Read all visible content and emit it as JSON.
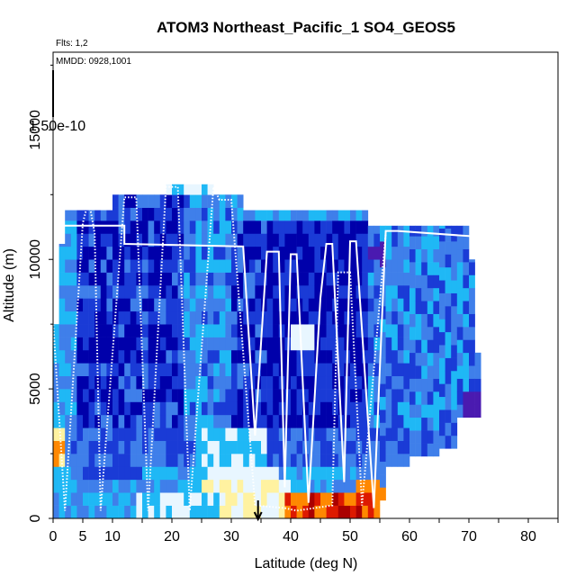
{
  "chart_data": {
    "type": "heatmap",
    "title": "ATOM3 Northeast_Pacific_1 SO4_GEOS5",
    "annotations": {
      "flights": "Flts: 1,2",
      "dates": "MMDD: 0928,1001",
      "colorbar_value": "1.50e-10"
    },
    "xlabel": "Latitude (deg N)",
    "ylabel": "Altitude (m)",
    "xlim": [
      0,
      85
    ],
    "ylim": [
      0,
      18000
    ],
    "x_ticks": [
      0,
      5,
      10,
      20,
      30,
      40,
      50,
      60,
      70,
      80
    ],
    "y_ticks": [
      0,
      5000,
      10000,
      15000
    ],
    "marker_latitude": 34.5,
    "colors": {
      "deep_blue": "#0000aa",
      "blue": "#1a3bd6",
      "mid_blue": "#3f7fea",
      "light_blue": "#1fb8f5",
      "pale": "#e8f6ff",
      "yellow": "#fff2a0",
      "orange": "#ff8800",
      "red": "#dd1a00",
      "dark_red": "#aa0000",
      "purple": "#4a1ab0",
      "track": "#ffffff"
    },
    "flight_track": [
      [
        0,
        7600
      ],
      [
        1,
        11300
      ],
      [
        12,
        11300
      ],
      [
        12,
        10600
      ],
      [
        32,
        10500
      ],
      [
        34,
        3200
      ],
      [
        36,
        10300
      ],
      [
        38,
        10300
      ],
      [
        39,
        1200
      ],
      [
        40,
        10200
      ],
      [
        41,
        10200
      ],
      [
        43,
        600
      ],
      [
        45,
        8500
      ],
      [
        46,
        10600
      ],
      [
        47,
        10600
      ],
      [
        49,
        1400
      ],
      [
        50,
        10700
      ],
      [
        51,
        10700
      ],
      [
        54,
        400
      ],
      [
        56,
        11100
      ],
      [
        58,
        11100
      ],
      [
        70,
        10900
      ],
      [
        71,
        10900
      ]
    ],
    "flight_track_dotted": [
      [
        0,
        7600
      ],
      [
        2,
        300
      ],
      [
        5,
        11400
      ],
      [
        6,
        12300
      ],
      [
        7,
        11000
      ],
      [
        8,
        300
      ],
      [
        12,
        12400
      ],
      [
        14,
        12400
      ],
      [
        16,
        300
      ],
      [
        19,
        12800
      ],
      [
        21,
        12800
      ],
      [
        23,
        300
      ],
      [
        27,
        12800
      ],
      [
        28,
        12300
      ],
      [
        30,
        12300
      ],
      [
        34,
        500
      ],
      [
        39,
        400
      ],
      [
        41,
        300
      ],
      [
        47,
        500
      ],
      [
        48,
        9500
      ],
      [
        50,
        9500
      ],
      [
        52,
        500
      ],
      [
        56,
        11000
      ]
    ]
  }
}
